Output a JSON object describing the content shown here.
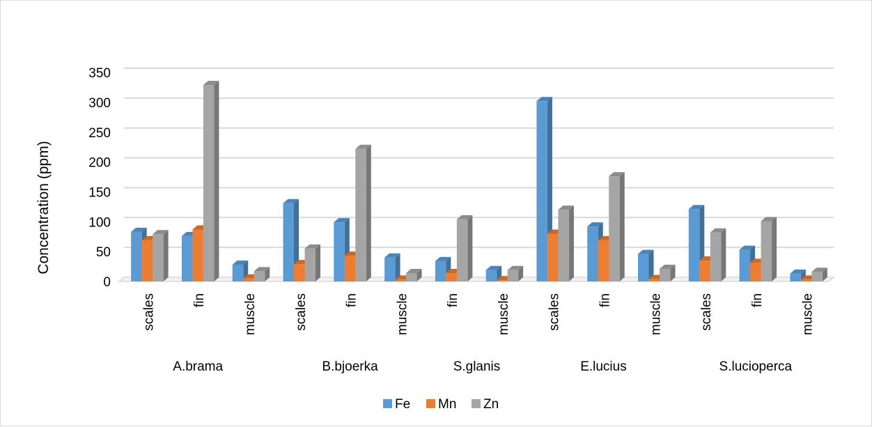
{
  "chart_data": {
    "type": "bar",
    "title": "",
    "xlabel": "",
    "ylabel": "Concentration  (ppm)",
    "ylim": [
      0,
      350
    ],
    "yticks": [
      0,
      50,
      100,
      150,
      200,
      250,
      300,
      350
    ],
    "grid": true,
    "legend_position": "bottom",
    "groups": [
      {
        "name": "A.brama",
        "categories": [
          "scales",
          "fin",
          "muscle"
        ]
      },
      {
        "name": "B.bjoerka",
        "categories": [
          "scales",
          "fin",
          "muscle"
        ]
      },
      {
        "name": "S.glanis",
        "categories": [
          "fin",
          "muscle"
        ]
      },
      {
        "name": "E.lucius",
        "categories": [
          "scales",
          "fin",
          "muscle"
        ]
      },
      {
        "name": "S.lucioperca",
        "categories": [
          "scales",
          "fin",
          "muscle"
        ]
      }
    ],
    "categories": [
      "scales",
      "fin",
      "muscle",
      "scales",
      "fin",
      "muscle",
      "fin",
      "muscle",
      "scales",
      "fin",
      "muscle",
      "scales",
      "fin",
      "muscle"
    ],
    "series": [
      {
        "name": "Fe",
        "color": "#5b9bd5",
        "values": [
          83,
          76,
          28,
          131,
          99,
          40,
          34,
          19,
          302,
          92,
          46,
          121,
          53,
          13
        ]
      },
      {
        "name": "Mn",
        "color": "#ed7d31",
        "values": [
          69,
          87,
          5,
          29,
          43,
          3,
          14,
          2,
          80,
          69,
          4,
          35,
          31,
          3
        ]
      },
      {
        "name": "Zn",
        "color": "#a5a5a5",
        "values": [
          79,
          329,
          17,
          55,
          222,
          14,
          104,
          19,
          120,
          176,
          21,
          82,
          101,
          16
        ]
      }
    ]
  }
}
